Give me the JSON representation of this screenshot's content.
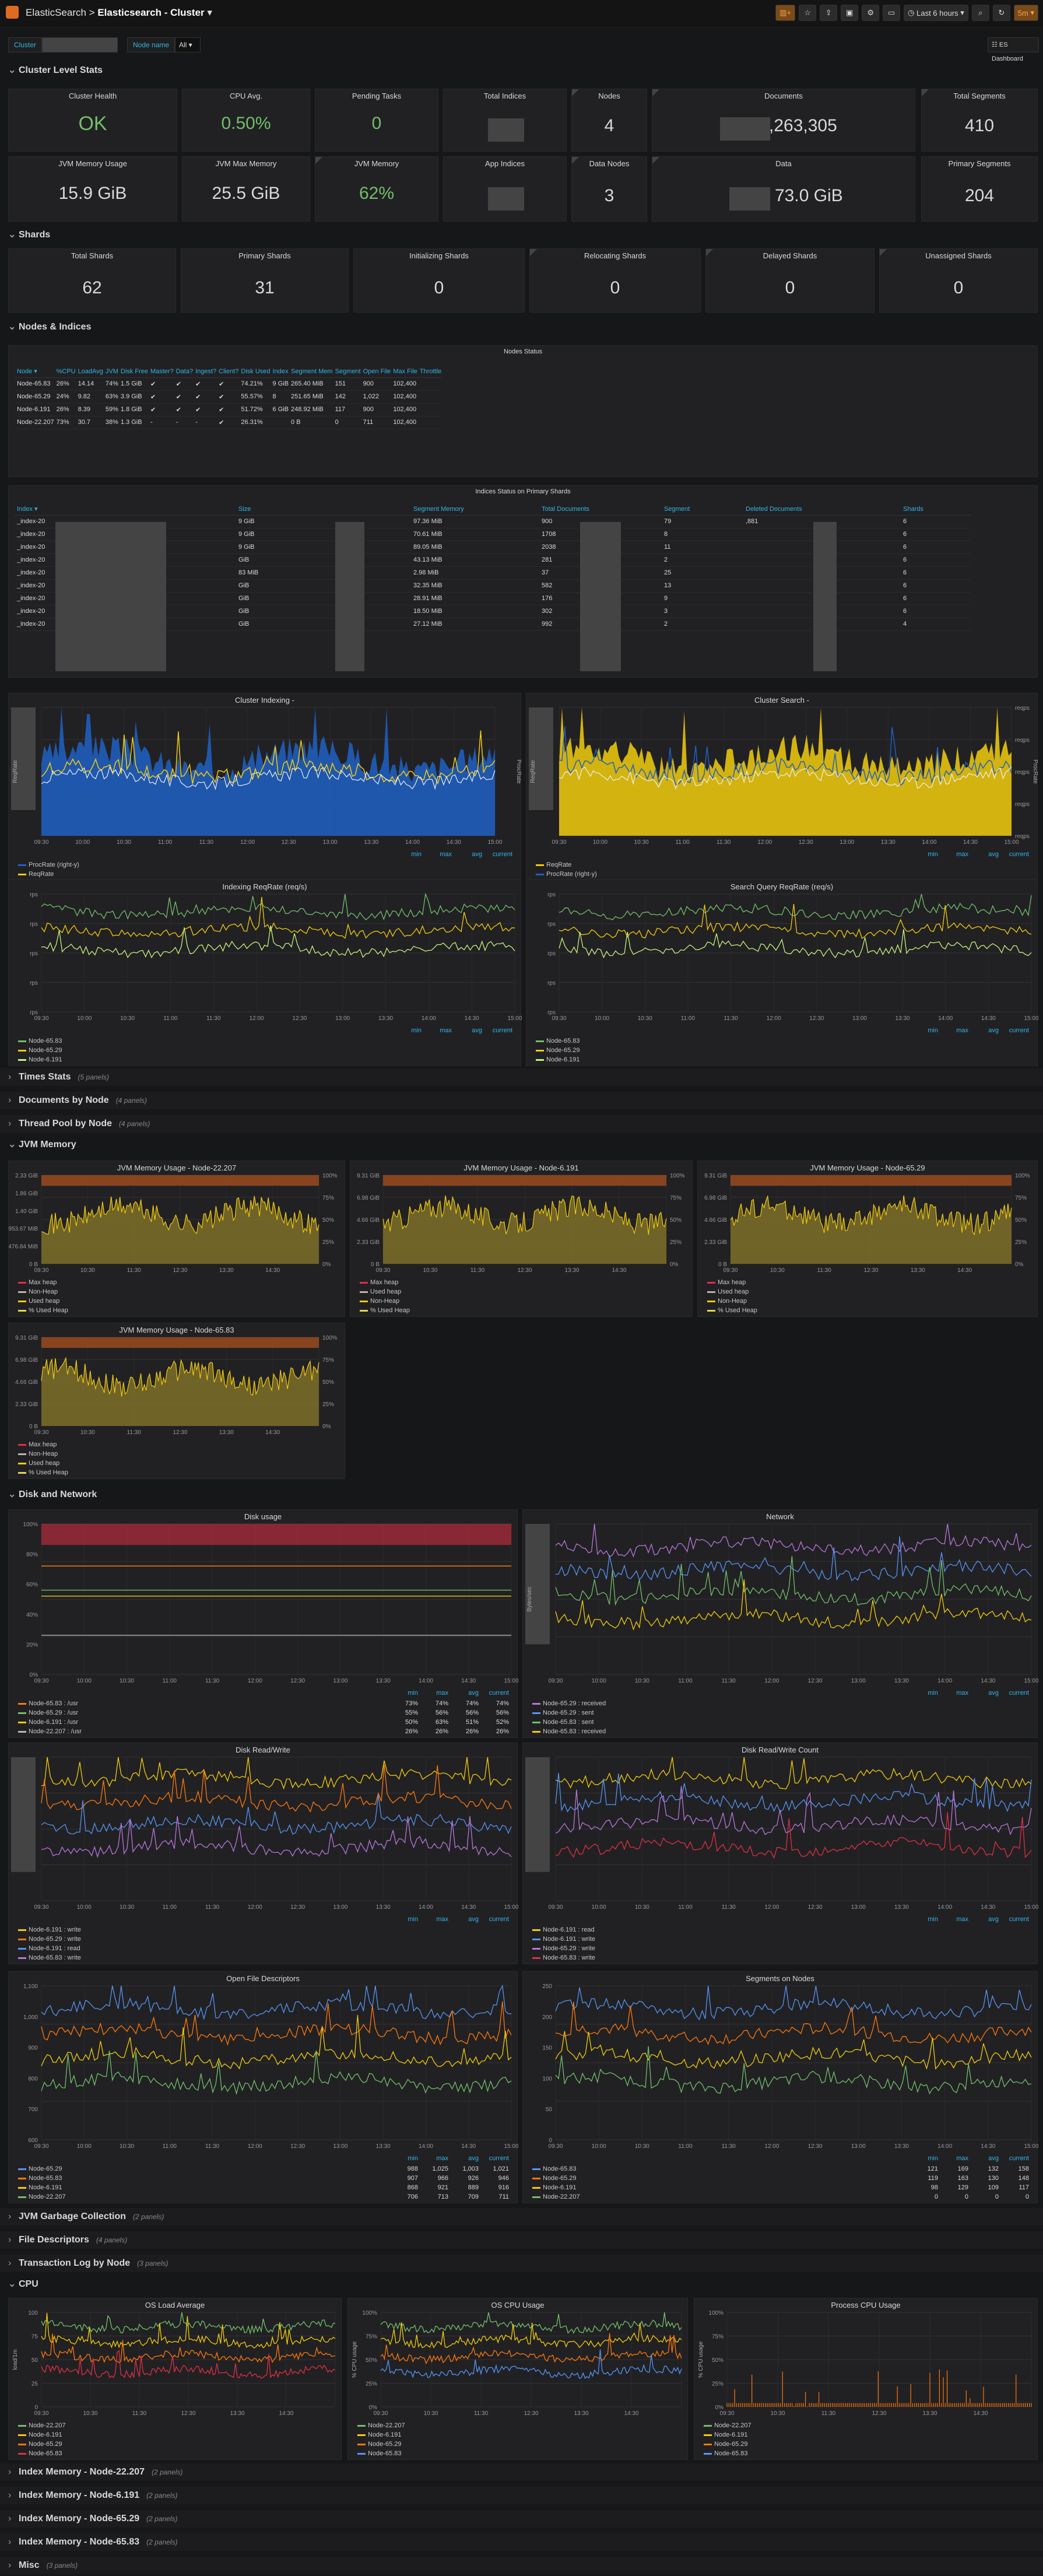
{
  "nav": {
    "breadcrumb_root": "ElasticSearch",
    "sep": ">",
    "dashboard": "Elasticsearch - Cluster",
    "time_range": "Last 6 hours",
    "refresh": "5m",
    "es_dashboard": "ES Dashboard"
  },
  "vars": {
    "cluster_label": "Cluster",
    "node_label": "Node name",
    "node_value": "All"
  },
  "rows": {
    "cluster_stats": "Cluster Level Stats",
    "shards": "Shards",
    "nodes_indices": "Nodes & Indices",
    "times_stats": "Times Stats",
    "times_stats_cnt": "(5 panels)",
    "docs_by_node": "Documents by Node",
    "docs_by_node_cnt": "(4 panels)",
    "thread_pool": "Thread Pool by Node",
    "thread_pool_cnt": "(4 panels)",
    "jvm_memory": "JVM Memory",
    "disk_network": "Disk and Network",
    "jvm_gc": "JVM Garbage Collection",
    "jvm_gc_cnt": "(2 panels)",
    "file_desc": "File Descriptors",
    "file_desc_cnt": "(4 panels)",
    "tlog": "Transaction Log by Node",
    "tlog_cnt": "(3 panels)",
    "cpu": "CPU",
    "im1": "Index Memory - Node-22.207",
    "im1_cnt": "(2 panels)",
    "im2": "Index Memory - Node-6.191",
    "im2_cnt": "(2 panels)",
    "im3": "Index Memory - Node-65.29",
    "im3_cnt": "(2 panels)",
    "im4": "Index Memory - Node-65.83",
    "im4_cnt": "(2 panels)",
    "misc": "Misc",
    "misc_cnt": "(3 panels)"
  },
  "stats": {
    "cluster_health": {
      "title": "Cluster Health",
      "value": "OK"
    },
    "cpu_avg": {
      "title": "CPU Avg.",
      "value": "0.50%"
    },
    "pending_tasks": {
      "title": "Pending Tasks",
      "value": "0"
    },
    "total_indices": {
      "title": "Total Indices",
      "value": ""
    },
    "nodes": {
      "title": "Nodes",
      "value": "4"
    },
    "documents": {
      "title": "Documents",
      "value": ",263,305"
    },
    "total_segments": {
      "title": "Total Segments",
      "value": "410"
    },
    "jvm_mem_usage": {
      "title": "JVM Memory Usage",
      "value": "15.9 GiB"
    },
    "jvm_max_mem": {
      "title": "JVM Max Memory",
      "value": "25.5 GiB"
    },
    "jvm_mem_pct": {
      "title": "JVM Memory",
      "value": "62%"
    },
    "app_indices": {
      "title": "App Indices",
      "value": ""
    },
    "data_nodes": {
      "title": "Data Nodes",
      "value": "3"
    },
    "data": {
      "title": "Data",
      "value": "73.0 GiB"
    },
    "primary_segments": {
      "title": "Primary Segments",
      "value": "204"
    }
  },
  "shards": [
    {
      "title": "Total Shards",
      "value": "62"
    },
    {
      "title": "Primary Shards",
      "value": "31"
    },
    {
      "title": "Initializing Shards",
      "value": "0"
    },
    {
      "title": "Relocating Shards",
      "value": "0"
    },
    {
      "title": "Delayed Shards",
      "value": "0"
    },
    {
      "title": "Unassigned Shards",
      "value": "0"
    }
  ],
  "nodes_status": {
    "title": "Nodes Status",
    "headers": [
      "Node ▾",
      "%CPU",
      "LoadAvg",
      "JVM",
      "Disk Free",
      "Master?",
      "Data?",
      "Ingest?",
      "Client?",
      "Disk Used",
      "Index",
      "Segment Mem",
      "Segment",
      "Open File",
      "Max File",
      "Throttle"
    ],
    "rows": [
      [
        "Node-65.83",
        "26%",
        "14.14",
        "74%",
        "1.5 GiB",
        "✔",
        "✔",
        "✔",
        "✔",
        "74.21%",
        "9 GiB",
        "265.40 MiB",
        "151",
        "900",
        "102,400",
        ""
      ],
      [
        "Node-65.29",
        "24%",
        "9.82",
        "63%",
        "3.9 GiB",
        "✔",
        "✔",
        "✔",
        "✔",
        "55.57%",
        "8",
        "251.65 MiB",
        "142",
        "1,022",
        "102,400",
        ""
      ],
      [
        "Node-6.191",
        "26%",
        "8.39",
        "59%",
        "1.8 GiB",
        "✔",
        "✔",
        "✔",
        "✔",
        "51.72%",
        "6 GiB",
        "248.92 MiB",
        "117",
        "900",
        "102,400",
        ""
      ],
      [
        "Node-22.207",
        "73%",
        "30.7",
        "38%",
        "1.3 GiB",
        "-",
        "-",
        "-",
        "✔",
        "26.31%",
        "",
        "0 B",
        "0",
        "711",
        "102,400",
        ""
      ]
    ]
  },
  "index_status": {
    "title": "Indices Status on Primary Shards",
    "headers": [
      "Index ▾",
      "Size",
      "Segment Memory",
      "Total Documents",
      "Segment",
      "Deleted Documents",
      "Shards"
    ],
    "rows": [
      [
        "_index-20",
        "9 GiB",
        "97.36 MiB",
        "900",
        "79",
        ",881",
        "6"
      ],
      [
        "_index-20",
        "9 GiB",
        "70.61 MiB",
        "1708",
        "8",
        "",
        "6"
      ],
      [
        "_index-20",
        "9 GiB",
        "89.05 MiB",
        "2038",
        "11",
        "",
        "6"
      ],
      [
        "_index-20",
        "GiB",
        "43.13 MiB",
        "281",
        "2",
        "",
        "6"
      ],
      [
        "_index-20",
        "83 MiB",
        "2.98 MiB",
        "37",
        "25",
        "",
        "6"
      ],
      [
        "_index-20",
        "GiB",
        "32.35 MiB",
        "582",
        "13",
        "",
        "6"
      ],
      [
        "_index-20",
        "GiB",
        "28.91 MiB",
        "176",
        "9",
        "",
        "6"
      ],
      [
        "_index-20",
        "GiB",
        "18.50 MiB",
        "302",
        "3",
        "",
        "6"
      ],
      [
        "_index-20",
        "GiB",
        "27.12 MiB",
        "992",
        "2",
        "",
        "4"
      ]
    ]
  },
  "time_axis": [
    "09:30",
    "10:00",
    "10:30",
    "11:00",
    "11:30",
    "12:00",
    "12:30",
    "13:00",
    "13:30",
    "14:00",
    "14:30",
    "15:00"
  ],
  "chart_data": [
    {
      "type": "area",
      "title": "Cluster Indexing -",
      "ylabel": "ReqRate",
      "y2label": "ProcRate",
      "legend": [
        "ProcRate (right-y)",
        "ReqRate"
      ],
      "legend_header": [
        "min",
        "max",
        "avg",
        "current"
      ]
    },
    {
      "type": "area",
      "title": "Cluster Search -",
      "ylabel": "ReqRate",
      "y2label": "ProcRate",
      "y2ticks": [
        "reqps",
        "reqps",
        "reqps",
        "reqps",
        "reqps"
      ],
      "legend": [
        "ReqRate",
        "ProcRate (right-y)"
      ],
      "legend_header": [
        "min",
        "max",
        "avg",
        "current"
      ]
    },
    {
      "type": "line",
      "title": "Indexing ReqRate (req/s)",
      "yticks": [
        "rps",
        "rps",
        "rps",
        "rps",
        "rps"
      ],
      "legend": [
        "Node-65.83",
        "Node-65.29",
        "Node-6.191"
      ],
      "legend_header": [
        "min",
        "max",
        "avg",
        "current"
      ]
    },
    {
      "type": "line",
      "title": "Search Query ReqRate (req/s)",
      "yticks": [
        "rps",
        "rps",
        "rps",
        "rps",
        "rps"
      ],
      "legend": [
        "Node-65.83",
        "Node-65.29",
        "Node-6.191"
      ],
      "legend_header": [
        "min",
        "max",
        "avg",
        "current"
      ]
    },
    {
      "type": "area",
      "title": "JVM Memory Usage - Node-22.207",
      "yticks": [
        "2.33 GiB",
        "1.86 GiB",
        "1.40 GiB",
        "953.67 MiB",
        "476.84 MiB",
        "0 B"
      ],
      "y2ticks": [
        "100%",
        "75%",
        "50%",
        "25%",
        "0%"
      ],
      "legend": [
        "Max heap",
        "Non-Heap",
        "Used heap",
        "% Used Heap"
      ]
    },
    {
      "type": "area",
      "title": "JVM Memory Usage - Node-6.191",
      "yticks": [
        "9.31 GiB",
        "6.98 GiB",
        "4.66 GiB",
        "2.33 GiB",
        "0 B"
      ],
      "y2ticks": [
        "100%",
        "75%",
        "50%",
        "25%",
        "0%"
      ],
      "legend": [
        "Max heap",
        "Used heap",
        "Non-Heap",
        "% Used Heap"
      ]
    },
    {
      "type": "area",
      "title": "JVM Memory Usage - Node-65.29",
      "yticks": [
        "9.31 GiB",
        "6.98 GiB",
        "4.66 GiB",
        "2.33 GiB",
        "0 B"
      ],
      "y2ticks": [
        "100%",
        "75%",
        "50%",
        "25%",
        "0%"
      ],
      "legend": [
        "Max heap",
        "Used heap",
        "Non-Heap",
        "% Used Heap"
      ]
    },
    {
      "type": "area",
      "title": "JVM Memory Usage - Node-65.83",
      "yticks": [
        "9.31 GiB",
        "6.98 GiB",
        "4.66 GiB",
        "2.33 GiB",
        "0 B"
      ],
      "y2ticks": [
        "100%",
        "75%",
        "50%",
        "25%",
        "0%"
      ],
      "legend": [
        "Max heap",
        "Non-Heap",
        "Used heap",
        "% Used Heap"
      ]
    },
    {
      "type": "line",
      "title": "Disk usage",
      "yticks": [
        "100%",
        "80%",
        "60%",
        "40%",
        "20%",
        "0%"
      ],
      "legend": [
        "Node-65.83 : /usr",
        "Node-65.29 : /usr",
        "Node-6.191 : /usr",
        "Node-22.207 : /usr"
      ],
      "legend_header": [
        "min",
        "max",
        "avg",
        "current"
      ],
      "values": [
        [
          "73%",
          "74%",
          "74%",
          "74%"
        ],
        [
          "55%",
          "56%",
          "56%",
          "56%"
        ],
        [
          "50%",
          "63%",
          "51%",
          "52%"
        ],
        [
          "26%",
          "26%",
          "26%",
          "26%"
        ]
      ]
    },
    {
      "type": "line",
      "title": "Network",
      "ylabel": "Bytes/sec",
      "legend": [
        "Node-65.29 : received",
        "Node-65.29 : sent",
        "Node-65.83 : sent",
        "Node-65.83 : received"
      ],
      "legend_header": [
        "min",
        "max",
        "avg",
        "current"
      ]
    },
    {
      "type": "line",
      "title": "Disk Read/Write",
      "legend": [
        "Node-6.191 : write",
        "Node-65.29 : write",
        "Node-6.191 : read",
        "Node-65.83 : write"
      ],
      "legend_header": [
        "min",
        "max",
        "avg",
        "current"
      ]
    },
    {
      "type": "line",
      "title": "Disk Read/Write Count",
      "legend": [
        "Node-6.191 : read",
        "Node-6.191 : write",
        "Node-65.29 : write",
        "Node-65.83 : write"
      ],
      "legend_header": [
        "min",
        "max",
        "avg",
        "current"
      ]
    },
    {
      "type": "line",
      "title": "Open File Descriptors",
      "yticks": [
        "1,100",
        "1,000",
        "900",
        "800",
        "700",
        "600"
      ],
      "legend": [
        "Node-65.29",
        "Node-65.83",
        "Node-6.191",
        "Node-22.207"
      ],
      "legend_header": [
        "min",
        "max",
        "avg",
        "current"
      ],
      "values": [
        [
          "988",
          "1,025",
          "1,003",
          "1,021"
        ],
        [
          "907",
          "966",
          "926",
          "946"
        ],
        [
          "868",
          "921",
          "889",
          "916"
        ],
        [
          "706",
          "713",
          "709",
          "711"
        ]
      ]
    },
    {
      "type": "line",
      "title": "Segments on Nodes",
      "yticks": [
        "250",
        "200",
        "150",
        "100",
        "50",
        "0"
      ],
      "legend": [
        "Node-65.83",
        "Node-65.29",
        "Node-6.191",
        "Node-22.207"
      ],
      "legend_header": [
        "min",
        "max",
        "avg",
        "current"
      ],
      "values": [
        [
          "121",
          "169",
          "132",
          "158"
        ],
        [
          "119",
          "163",
          "130",
          "148"
        ],
        [
          "98",
          "129",
          "109",
          "117"
        ],
        [
          "0",
          "0",
          "0",
          "0"
        ]
      ]
    },
    {
      "type": "line",
      "title": "OS Load Average",
      "ylabel": "load/1m",
      "yticks": [
        "100",
        "75",
        "50",
        "25",
        "0"
      ],
      "legend": [
        "Node-22.207",
        "Node-6.191",
        "Node-65.29",
        "Node-65.83"
      ]
    },
    {
      "type": "line",
      "title": "OS CPU Usage",
      "ylabel": "% CPU usage",
      "yticks": [
        "100%",
        "75%",
        "50%",
        "25%",
        "0%"
      ],
      "legend": [
        "Node-22.207",
        "Node-6.191",
        "Node-65.29",
        "Node-65.83"
      ]
    },
    {
      "type": "line",
      "title": "Process CPU Usage",
      "ylabel": "% CPU usage",
      "yticks": [
        "100%",
        "75%",
        "50%",
        "25%",
        "0%"
      ],
      "legend": [
        "Node-22.207",
        "Node-6.191",
        "Node-65.29",
        "Node-65.83"
      ]
    }
  ],
  "colors": {
    "green": "#73bf69",
    "yellow": "#f2cc0c",
    "blue": "#1f60c4",
    "orange": "#ff780a",
    "red": "#e02f44",
    "purple": "#b877d9",
    "cyan": "#5794f2",
    "bg": "#161719",
    "panel": "#212124"
  }
}
